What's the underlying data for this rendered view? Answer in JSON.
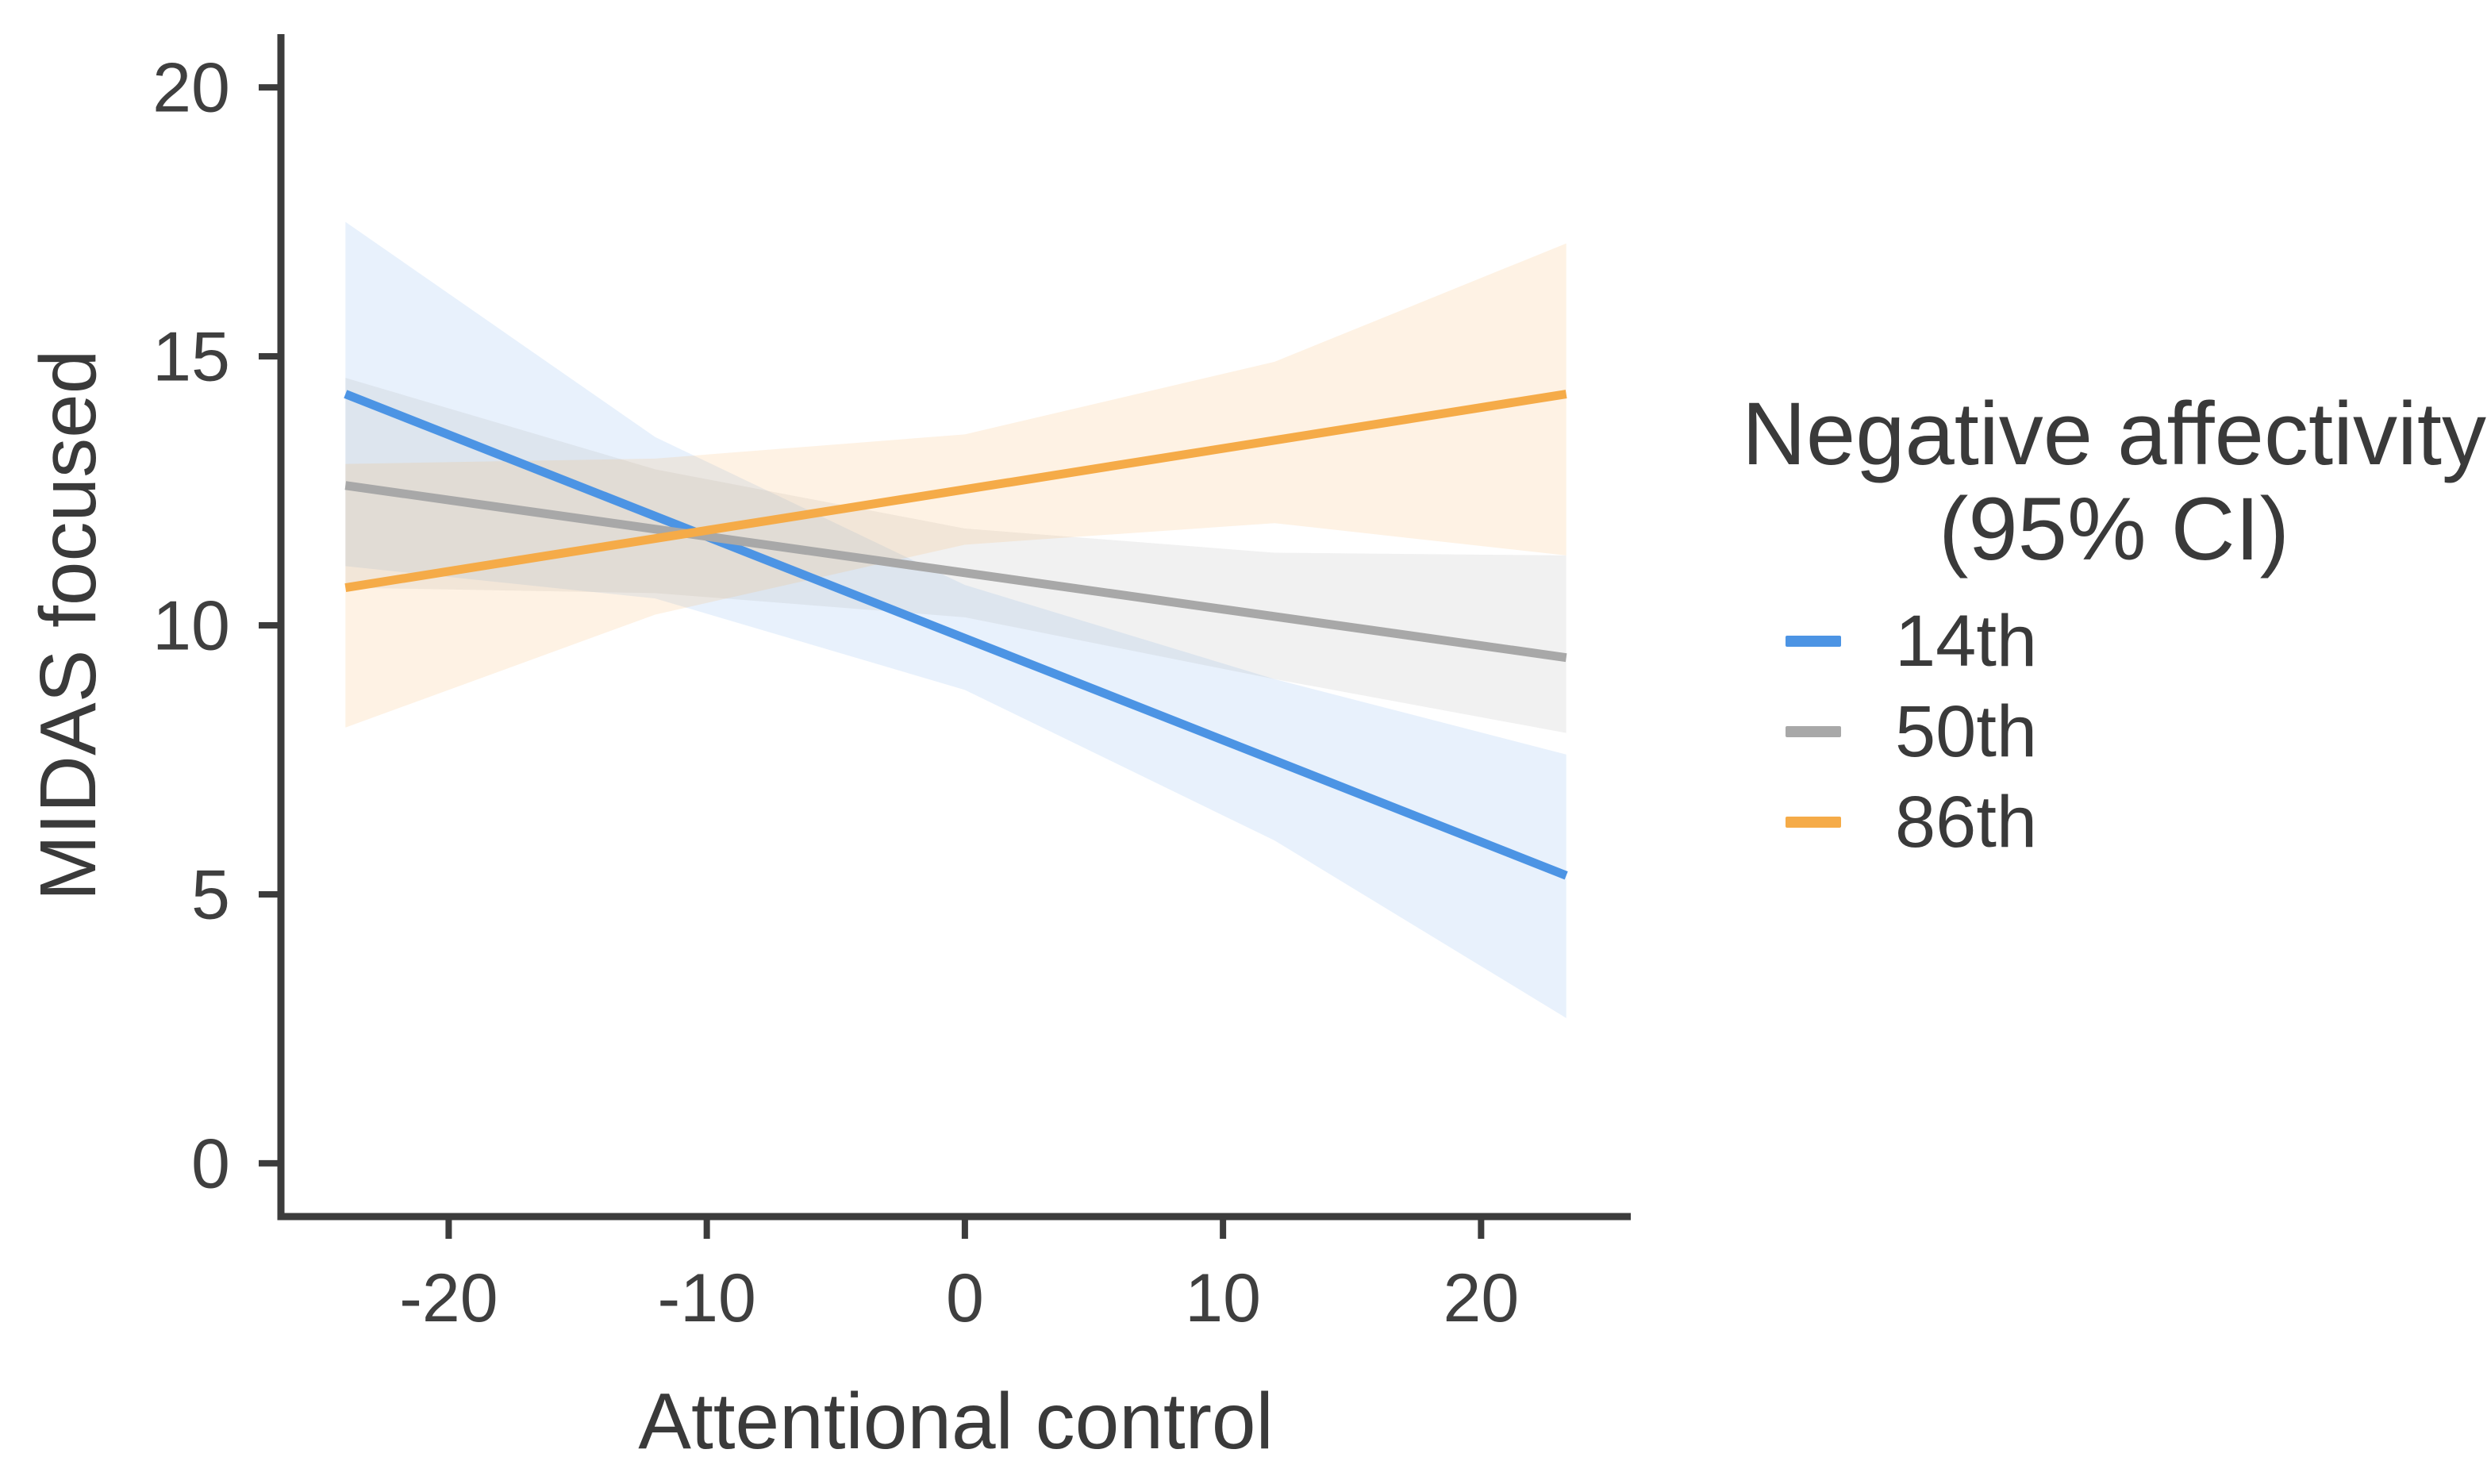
{
  "page": {
    "background": "#ffffff"
  },
  "chart_data": {
    "type": "line",
    "title": "",
    "xlabel": "Attentional control",
    "ylabel": "MIDAS focused",
    "xlim": [
      -26.5,
      25.8
    ],
    "ylim": [
      -0.99,
      20.99
    ],
    "grid": false,
    "x_ticks": [
      {
        "value": -20,
        "label": "-20"
      },
      {
        "value": -10,
        "label": "-10"
      },
      {
        "value": 0,
        "label": "0"
      },
      {
        "value": 10,
        "label": "10"
      },
      {
        "value": 20,
        "label": "20"
      }
    ],
    "y_ticks": [
      {
        "value": 0,
        "label": "0"
      },
      {
        "value": 5,
        "label": "5"
      },
      {
        "value": 10,
        "label": "10"
      },
      {
        "value": 15,
        "label": "15"
      },
      {
        "value": 20,
        "label": "20"
      }
    ],
    "legend": {
      "position": "right",
      "title_lines": [
        "Negative affectivity",
        "(95% CI)"
      ],
      "entries": [
        {
          "label": "14th",
          "color": "#4C94E4"
        },
        {
          "label": "50th",
          "color": "#A8A8A8"
        },
        {
          "label": "86th",
          "color": "#F5AB48"
        }
      ]
    },
    "series": [
      {
        "name": "14th",
        "color": "#4C94E4",
        "band_opacity": 0.13,
        "x": [
          -24,
          23.3
        ],
        "y": [
          14.3,
          5.35
        ],
        "ci": {
          "x": [
            -24,
            -12,
            0,
            12,
            23.3
          ],
          "upper": [
            17.5,
            13.5,
            10.75,
            9.0,
            7.6
          ],
          "lower": [
            11.1,
            10.5,
            8.8,
            6.0,
            2.7
          ]
        }
      },
      {
        "name": "50th",
        "color": "#A8A8A8",
        "band_opacity": 0.16,
        "x": [
          -24,
          23.3
        ],
        "y": [
          12.6,
          9.4
        ],
        "ci": {
          "x": [
            -24,
            -12,
            0,
            12,
            23.3
          ],
          "upper": [
            14.6,
            12.9,
            11.8,
            11.35,
            11.3
          ],
          "lower": [
            10.7,
            10.6,
            10.15,
            9.0,
            8.0
          ]
        }
      },
      {
        "name": "86th",
        "color": "#F5AB48",
        "band_opacity": 0.15,
        "x": [
          -24,
          23.3
        ],
        "y": [
          10.7,
          14.3
        ],
        "ci": {
          "x": [
            -24,
            -12,
            0,
            12,
            23.3
          ],
          "upper": [
            13.0,
            13.1,
            13.55,
            14.9,
            17.1
          ],
          "lower": [
            8.1,
            10.2,
            11.5,
            11.9,
            11.3
          ]
        }
      }
    ],
    "colors": {
      "axis": "#3C3C3C",
      "tick_label": "#3F3F3F",
      "axis_title": "#3A3A3A",
      "legend_text": "#3A3A3A"
    }
  }
}
